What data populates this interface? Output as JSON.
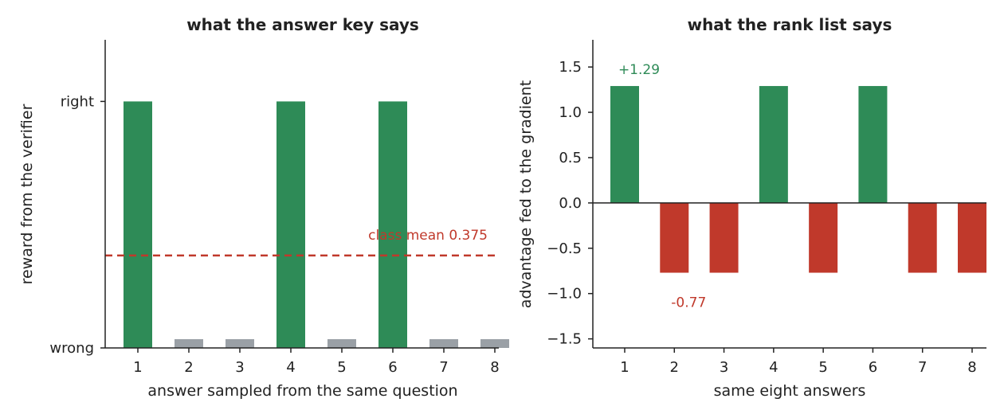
{
  "colors": {
    "right": "#2e8b57",
    "wrong": "#9aa0a6",
    "negative": "#c0392b",
    "axis": "#222222"
  },
  "chart_data": [
    {
      "type": "bar",
      "title": "what the answer key says",
      "xlabel": "answer sampled from the same question",
      "ylabel": "reward from the verifier",
      "categories": [
        "1",
        "2",
        "3",
        "4",
        "5",
        "6",
        "7",
        "8"
      ],
      "values": [
        1,
        0,
        0,
        1,
        0,
        1,
        0,
        0
      ],
      "ytick_labels": [
        {
          "value": 1,
          "label": "right"
        },
        {
          "value": 0,
          "label": "wrong"
        }
      ],
      "ylim": [
        0,
        1.25
      ],
      "reference_line": {
        "value": 0.375,
        "label": "class mean 0.375",
        "style": "dashed"
      },
      "grid": false
    },
    {
      "type": "bar",
      "title": "what the rank list says",
      "xlabel": "same eight answers",
      "ylabel": "advantage fed to the gradient",
      "categories": [
        "1",
        "2",
        "3",
        "4",
        "5",
        "6",
        "7",
        "8"
      ],
      "values": [
        1.29,
        -0.77,
        -0.77,
        1.29,
        -0.77,
        1.29,
        -0.77,
        -0.77
      ],
      "yticks": [
        -1.5,
        -1.0,
        -0.5,
        0.0,
        0.5,
        1.0,
        1.5
      ],
      "ytick_labels": [
        "−1.5",
        "−1.0",
        "−0.5",
        "0.0",
        "0.5",
        "1.0",
        "1.5"
      ],
      "ylim": [
        -1.6,
        1.8
      ],
      "annotations": [
        {
          "text": "+1.29",
          "category": "1",
          "value": 1.29
        },
        {
          "text": "-0.77",
          "category": "2",
          "value": -0.77
        }
      ],
      "grid": false
    }
  ]
}
